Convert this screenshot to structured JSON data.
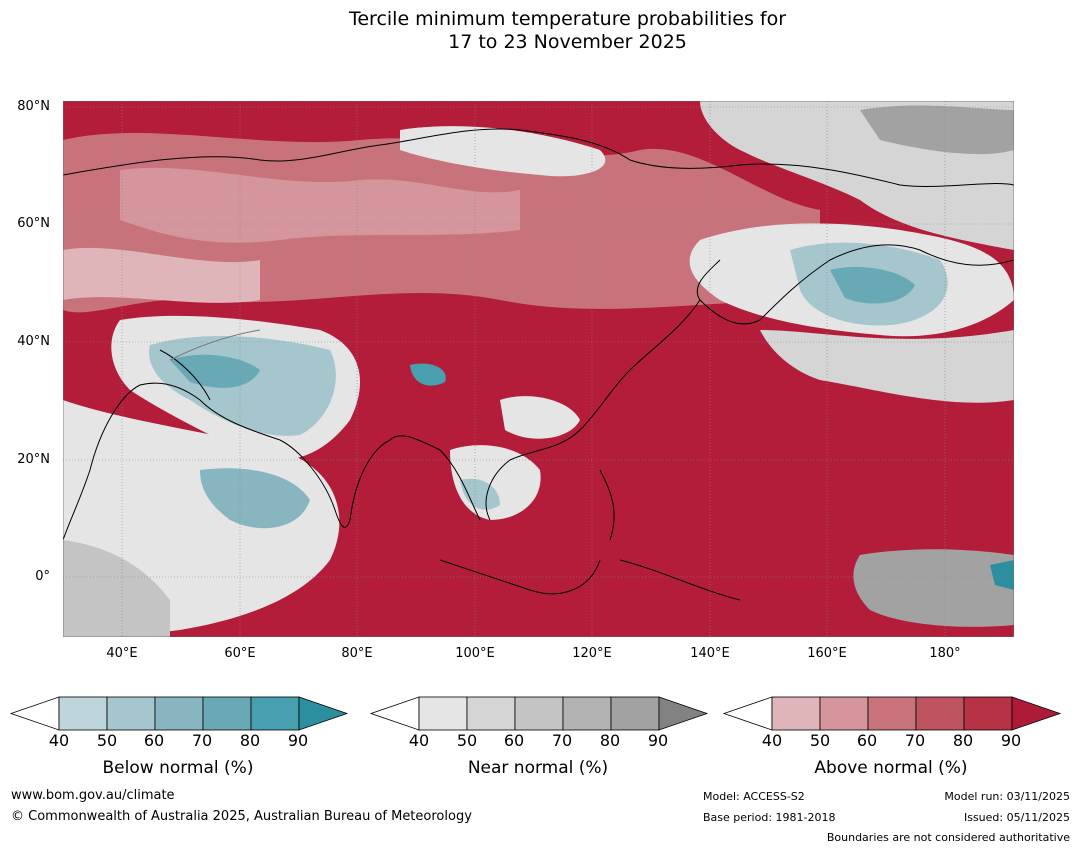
{
  "title": {
    "line1": "Tercile minimum temperature probabilities for",
    "line2": "17 to 23 November 2025"
  },
  "map": {
    "lat_labels": [
      "80°N",
      "60°N",
      "40°N",
      "20°N",
      "0°"
    ],
    "lon_labels": [
      "40°E",
      "60°E",
      "80°E",
      "100°E",
      "120°E",
      "140°E",
      "160°E",
      "180°"
    ]
  },
  "legends": [
    {
      "name": "below",
      "label": "Below normal (%)",
      "ticks": [
        "40",
        "50",
        "60",
        "70",
        "80",
        "90"
      ],
      "colors": [
        "#ffffff",
        "#bfd5dc",
        "#a5c6cd",
        "#87b5c0",
        "#69a9b6",
        "#479faf",
        "#2b8fa0"
      ]
    },
    {
      "name": "near",
      "label": "Near normal (%)",
      "ticks": [
        "40",
        "50",
        "60",
        "70",
        "80",
        "90"
      ],
      "colors": [
        "#ffffff",
        "#e5e5e5",
        "#d5d5d5",
        "#c4c4c4",
        "#b3b3b3",
        "#a2a2a2",
        "#828282"
      ]
    },
    {
      "name": "above",
      "label": "Above normal (%)",
      "ticks": [
        "40",
        "50",
        "60",
        "70",
        "80",
        "90"
      ],
      "colors": [
        "#ffffff",
        "#e0b5ba",
        "#d4959c",
        "#c8737c",
        "#bd5460",
        "#b53345",
        "#ae1b38"
      ]
    }
  ],
  "footer": {
    "website": "www.bom.gov.au/climate",
    "copyright": "© Commonwealth of Australia 2025, Australian Bureau of Meteorology",
    "model": "Model: ACCESS-S2",
    "base_period": "Base period: 1981-2018",
    "model_run": "Model run: 03/11/2025",
    "issued": "Issued: 05/11/2025",
    "disclaimer": "Boundaries are not considered authoritative"
  }
}
